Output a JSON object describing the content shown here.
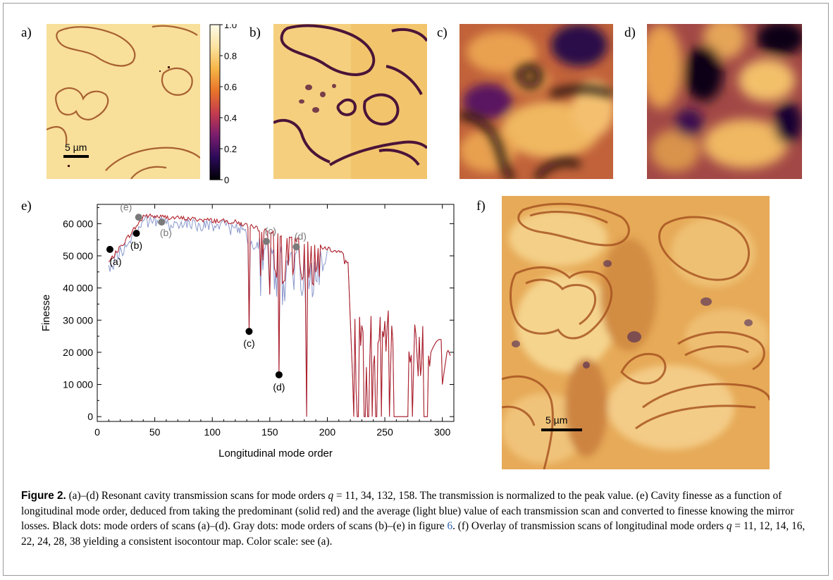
{
  "panel_labels": {
    "a": "a)",
    "b": "b)",
    "c": "c)",
    "d": "d)",
    "e": "e)",
    "f": "f)"
  },
  "scalebar_label": "5 µm",
  "colorbar": {
    "ticks": [
      1.0,
      0.8,
      0.6,
      0.4,
      0.2,
      0
    ],
    "tick_labels": [
      "1.0",
      "0.8",
      "0.6",
      "0.4",
      "0.2",
      "0"
    ],
    "colors": [
      "#000004",
      "#2b0a5a",
      "#7a1d6d",
      "#c43c4e",
      "#e9732a",
      "#f6b547",
      "#fbe3a0",
      "#fdfbe8"
    ]
  },
  "chart_data": {
    "type": "line",
    "xlabel": "Longitudinal mode order",
    "ylabel": "Finesse",
    "xlim": [
      0,
      310
    ],
    "ylim": [
      -1500,
      66000
    ],
    "xticks": [
      0,
      50,
      100,
      150,
      200,
      250,
      300
    ],
    "yticks": [
      0,
      10000,
      20000,
      30000,
      40000,
      50000,
      60000
    ],
    "ytick_labels": [
      "0",
      "10 000",
      "20 000",
      "30 000",
      "40 000",
      "50 000",
      "60 000"
    ],
    "series_colors": {
      "predominant": "#b0222c",
      "average": "#8a98cc"
    },
    "black_dots": [
      {
        "x": 11,
        "y": 52000,
        "label": "(a)"
      },
      {
        "x": 34,
        "y": 57000,
        "label": "(b)"
      },
      {
        "x": 132,
        "y": 26500,
        "label": "(c)"
      },
      {
        "x": 158,
        "y": 13000,
        "label": "(d)"
      }
    ],
    "gray_dots": [
      {
        "x": 36,
        "y": 62000,
        "label": "(e)"
      },
      {
        "x": 56,
        "y": 60500,
        "label": "(b)"
      },
      {
        "x": 147,
        "y": 54500,
        "label": "(c)"
      },
      {
        "x": 173,
        "y": 52800,
        "label": "(d)"
      }
    ]
  },
  "caption": {
    "fig_label": "Figure 2.",
    "p1": " (a)–(d) Resonant cavity transmission scans for mode orders ",
    "q1": "q",
    "p2": " = 11, 34, 132, 158. The transmission is normalized to the peak value. (e) Cavity finesse as a function of longitudinal mode order, deduced from taking the predominant (solid red) and the average (light blue) value of each transmission scan and converted to finesse knowing the mirror losses. Black dots: mode orders of scans (a)–(d). Gray dots: mode orders of scans (b)–(e) in figure ",
    "figref": "6",
    "p3": ". (f) Overlay of transmission scans of longitudinal mode orders ",
    "q2": "q",
    "p4": " = 11, 12, 14, 16, 22, 24, 28, 38 yielding a consistent isocontour map. Color scale: see (a)."
  }
}
